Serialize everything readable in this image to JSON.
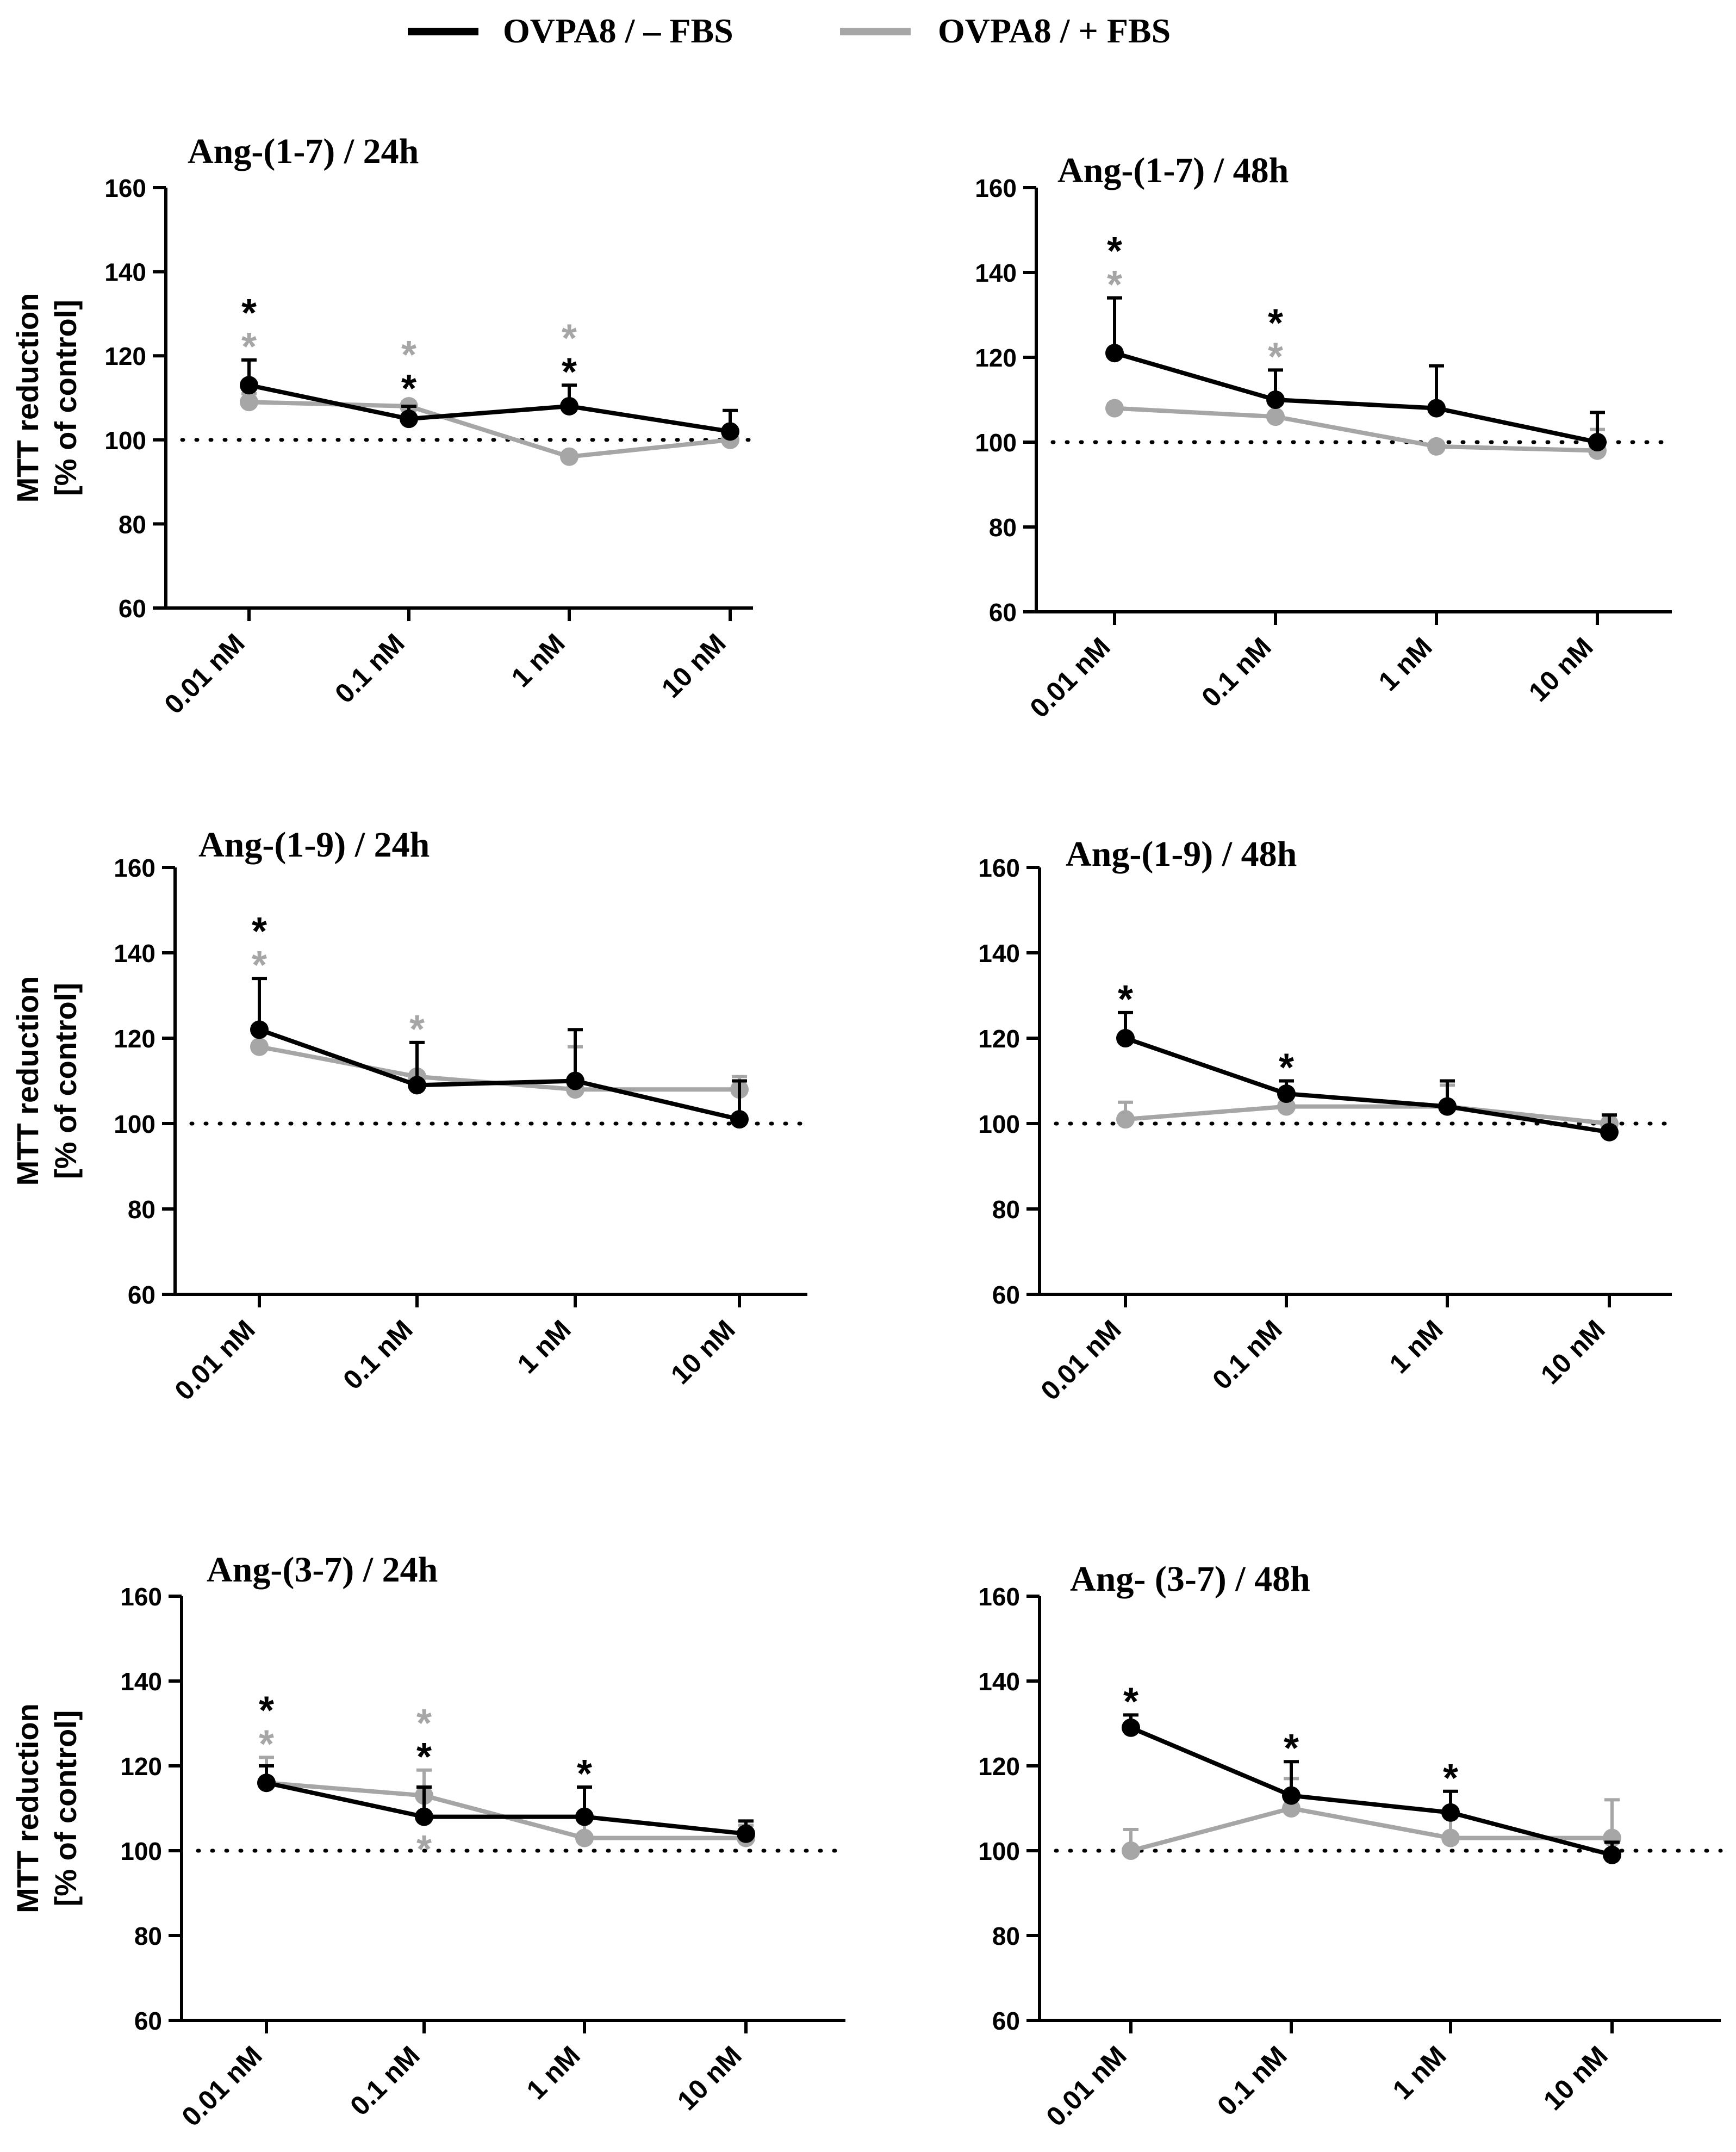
{
  "legend": {
    "placement": "top-center",
    "items": [
      {
        "label": "OVPA8 / – FBS",
        "color": "#000000"
      },
      {
        "label": "OVPA8 / + FBS",
        "color": "#a6a6a6"
      }
    ]
  },
  "colors": {
    "minus_fbs": "#000000",
    "plus_fbs": "#a6a6a6",
    "reference_line": "#000000"
  },
  "ylabel_lines": [
    "MTT reduction",
    "[% of control]"
  ],
  "chart_data": [
    {
      "type": "line",
      "title": "Ang-(1-7) / 24h",
      "ylabel": "MTT reduction [% of control]",
      "categories": [
        "0.01 nM",
        "0.1 nM",
        "1 nM",
        "10 nM"
      ],
      "ylim": [
        60,
        160
      ],
      "yticks": [
        60,
        80,
        100,
        120,
        140,
        160
      ],
      "reference_line": 100,
      "grid": false,
      "show_ylabel": true,
      "series": [
        {
          "name": "OVPA8 / – FBS",
          "values": [
            113,
            105,
            108,
            102
          ],
          "errors": [
            6,
            3,
            5,
            5
          ],
          "stars": [
            "*",
            "*",
            "*",
            ""
          ]
        },
        {
          "name": "OVPA8 / + FBS",
          "values": [
            109,
            108,
            96,
            100
          ],
          "errors": [
            2,
            1,
            1,
            2
          ],
          "stars": [
            "*",
            "*",
            "*",
            ""
          ]
        }
      ],
      "stars_order": [
        "minus",
        "plus",
        "plus",
        ""
      ]
    },
    {
      "type": "line",
      "title": "Ang-(1-7) / 48h",
      "ylabel": "",
      "categories": [
        "0.01 nM",
        "0.1 nM",
        "1 nM",
        "10 nM"
      ],
      "ylim": [
        60,
        160
      ],
      "yticks": [
        60,
        80,
        100,
        120,
        140,
        160
      ],
      "reference_line": 100,
      "grid": false,
      "show_ylabel": false,
      "series": [
        {
          "name": "OVPA8 / – FBS",
          "values": [
            121,
            110,
            108,
            100
          ],
          "errors": [
            13,
            7,
            10,
            7
          ],
          "stars": [
            "*",
            "*",
            "",
            ""
          ]
        },
        {
          "name": "OVPA8 / + FBS",
          "values": [
            108,
            106,
            99,
            98
          ],
          "errors": [
            1,
            3,
            1,
            5
          ],
          "stars": [
            "*",
            "*",
            "",
            ""
          ]
        }
      ],
      "stars_order": [
        "minus",
        "minus",
        "",
        ""
      ]
    },
    {
      "type": "line",
      "title": "Ang-(1-9) / 24h",
      "ylabel": "MTT reduction [% of control]",
      "categories": [
        "0.01 nM",
        "0.1 nM",
        "1 nM",
        "10 nM"
      ],
      "ylim": [
        60,
        160
      ],
      "yticks": [
        60,
        80,
        100,
        120,
        140,
        160
      ],
      "reference_line": 100,
      "grid": false,
      "show_ylabel": true,
      "series": [
        {
          "name": "OVPA8 / – FBS",
          "values": [
            122,
            109,
            110,
            101
          ],
          "errors": [
            12,
            10,
            12,
            9
          ],
          "stars": [
            "*",
            "",
            "",
            ""
          ]
        },
        {
          "name": "OVPA8 / + FBS",
          "values": [
            118,
            111,
            108,
            108
          ],
          "errors": [
            5,
            8,
            10,
            3
          ],
          "stars": [
            "*",
            "*",
            "",
            ""
          ]
        }
      ],
      "stars_order": [
        "minus",
        "plus",
        "",
        ""
      ]
    },
    {
      "type": "line",
      "title": "Ang-(1-9) / 48h",
      "ylabel": "",
      "categories": [
        "0.01 nM",
        "0.1 nM",
        "1 nM",
        "10 nM"
      ],
      "ylim": [
        60,
        160
      ],
      "yticks": [
        60,
        80,
        100,
        120,
        140,
        160
      ],
      "reference_line": 100,
      "grid": false,
      "show_ylabel": false,
      "series": [
        {
          "name": "OVPA8 / – FBS",
          "values": [
            120,
            107,
            104,
            98
          ],
          "errors": [
            6,
            3,
            6,
            4
          ],
          "stars": [
            "*",
            "*",
            "",
            ""
          ]
        },
        {
          "name": "OVPA8 / + FBS",
          "values": [
            101,
            104,
            104,
            100
          ],
          "errors": [
            4,
            4,
            5,
            2
          ],
          "stars": [
            "",
            "",
            "",
            ""
          ]
        }
      ],
      "stars_order": [
        "minus",
        "minus",
        "",
        ""
      ]
    },
    {
      "type": "line",
      "title": "Ang-(3-7) / 24h",
      "ylabel": "MTT reduction [% of control]",
      "categories": [
        "0.01 nM",
        "0.1 nM",
        "1 nM",
        "10 nM"
      ],
      "ylim": [
        60,
        160
      ],
      "yticks": [
        60,
        80,
        100,
        120,
        140,
        160
      ],
      "reference_line": 100,
      "grid": false,
      "show_ylabel": true,
      "series": [
        {
          "name": "OVPA8 / – FBS",
          "values": [
            116,
            108,
            108,
            104
          ],
          "errors": [
            4,
            7,
            7,
            3
          ],
          "stars": [
            "*",
            "*",
            "*",
            ""
          ]
        },
        {
          "name": "OVPA8 / + FBS",
          "values": [
            116,
            113,
            103,
            103
          ],
          "errors": [
            6,
            6,
            5,
            3
          ],
          "stars": [
            "*",
            "*",
            "",
            ""
          ]
        }
      ],
      "stars_order": [
        "minus",
        "plus",
        "minus",
        ""
      ],
      "stars_below_first": [
        "",
        "plus",
        "",
        ""
      ]
    },
    {
      "type": "line",
      "title": "Ang- (3-7) / 48h",
      "ylabel": "",
      "categories": [
        "0.01 nM",
        "0.1 nM",
        "1 nM",
        "10 nM"
      ],
      "ylim": [
        60,
        160
      ],
      "yticks": [
        60,
        80,
        100,
        120,
        140,
        160
      ],
      "reference_line": 100,
      "grid": false,
      "show_ylabel": false,
      "series": [
        {
          "name": "OVPA8 / – FBS",
          "values": [
            129,
            113,
            109,
            99
          ],
          "errors": [
            3,
            8,
            5,
            3
          ],
          "stars": [
            "*",
            "*",
            "*",
            ""
          ]
        },
        {
          "name": "OVPA8 / + FBS",
          "values": [
            100,
            110,
            103,
            103
          ],
          "errors": [
            5,
            7,
            6,
            9
          ],
          "stars": [
            "",
            "",
            "",
            ""
          ]
        }
      ],
      "stars_order": [
        "minus",
        "minus",
        "minus",
        ""
      ]
    }
  ]
}
